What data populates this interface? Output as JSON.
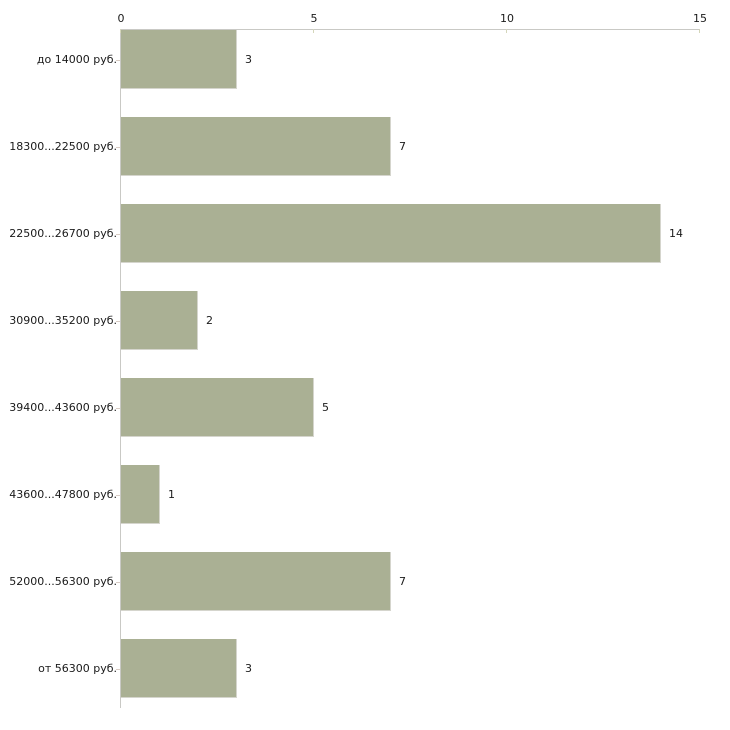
{
  "chart_data": {
    "type": "bar",
    "orientation": "horizontal",
    "title": "",
    "categories": [
      "до 14000 руб.",
      "18300...22500 руб.",
      "22500...26700 руб.",
      "30900...35200 руб.",
      "39400...43600 руб.",
      "43600...47800 руб.",
      "52000...56300 руб.",
      "от 56300 руб."
    ],
    "values": [
      3,
      7,
      14,
      2,
      5,
      1,
      7,
      3
    ],
    "x_ticks": [
      0,
      5,
      10,
      15
    ],
    "xlim": [
      0,
      15
    ],
    "grid": "off",
    "legend": "none",
    "value_labels_shown": true,
    "colors": {
      "bar_fill": "#aab094",
      "bar_edge": "#d5d5cd",
      "axis_line": "#c9c9c5",
      "x_tick_mark": "#d4d6ba",
      "category_tick_mark": "#d9ccc4",
      "text": "#1a1a1a",
      "background": "#ffffff"
    }
  }
}
